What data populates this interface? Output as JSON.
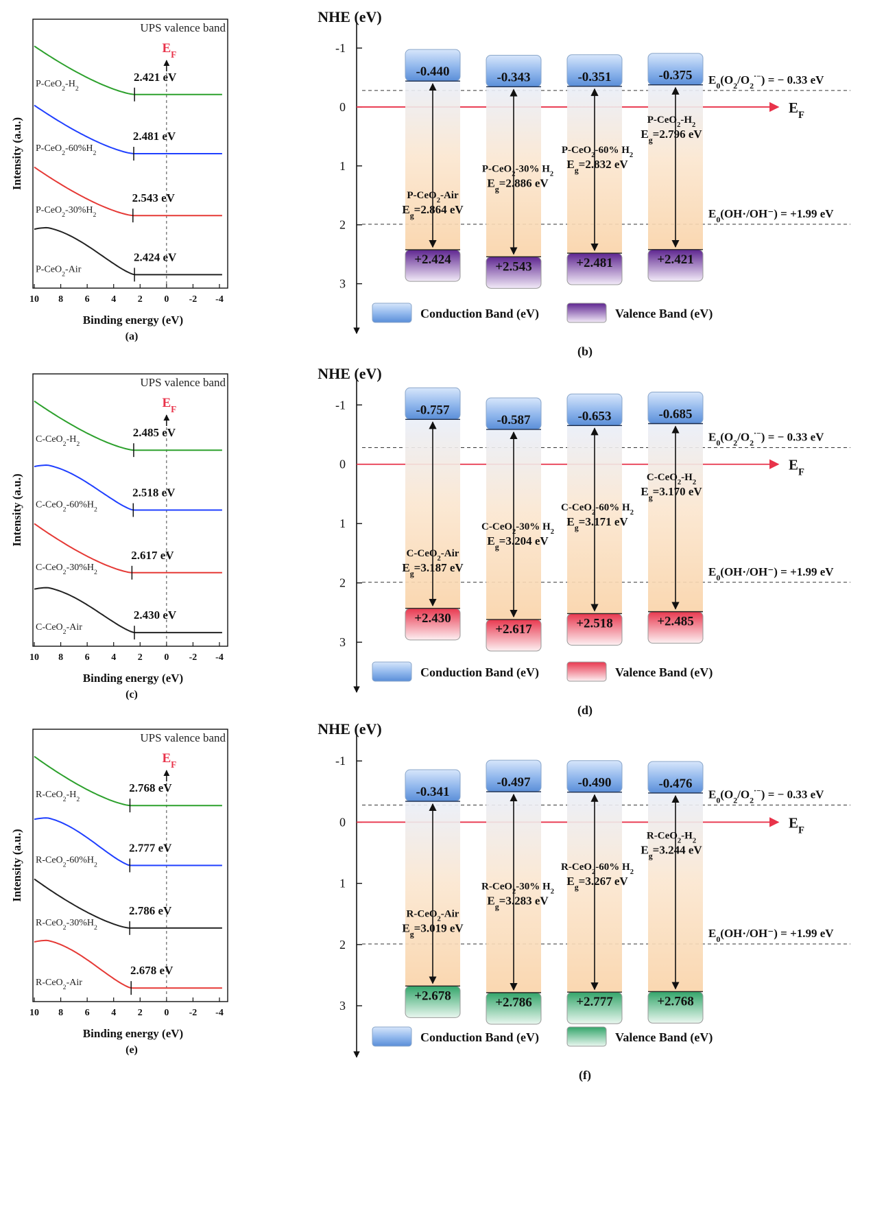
{
  "common": {
    "ups_title": "UPS valence band",
    "ef_label": "E",
    "ef_sub": "F",
    "ups_ylabel": "Intensity (a.u.)",
    "ups_xlabel": "Binding energy (eV)",
    "ups_xticks": [
      "10",
      "8",
      "6",
      "4",
      "2",
      "0",
      "-2",
      "-4"
    ],
    "nhe_label": "NHE (eV)",
    "nhe_yticks": [
      "-1",
      "0",
      "1",
      "2",
      "3"
    ],
    "o2_pre": "E",
    "o2_sub": "0",
    "o2_main": "(O",
    "o2_sub2": "2",
    "o2_slash": "/O",
    "o2_sub3": "2",
    "o2_sup": "·−",
    "o2_post": ") = − 0.33 eV",
    "oh_pre": "E",
    "oh_sub": "0",
    "oh_post": "(OH·/OH⁻) = +1.99 eV",
    "legend_cb": "Conduction Band (eV)",
    "legend_vb": "Valence Band (eV)",
    "eg_prefix": "E",
    "eg_sub": "g",
    "colors": {
      "green": "#2ca02c",
      "blue": "#1f3fff",
      "red": "#e53935",
      "black": "#222222",
      "ef_red": "#e8334a",
      "cb_top": "#c9defa",
      "cb_bottom": "#5c93de",
      "vb_purple_top": "#6a2a9a",
      "vb_red_top": "#e8384f",
      "vb_green_top": "#3aa86b"
    }
  },
  "chart_data": [
    {
      "type": "line",
      "panel_label": "(a)",
      "title": "UPS valence band",
      "xlabel": "Binding energy (eV)",
      "ylabel": "Intensity (a.u.)",
      "xlim": [
        10,
        -4
      ],
      "series": [
        {
          "name": "P-CeO2-H2",
          "sample": "P-CeO",
          "suffix": "-H",
          "suffix_sub": "2",
          "onset": 2.421,
          "onset_label": "2.421 eV",
          "color": "#2ca02c"
        },
        {
          "name": "P-CeO2-60%H2",
          "sample": "P-CeO",
          "suffix": "-60%H",
          "suffix_sub": "2",
          "onset": 2.481,
          "onset_label": "2.481 eV",
          "color": "#1f3fff"
        },
        {
          "name": "P-CeO2-30%H2",
          "sample": "P-CeO",
          "suffix": "-30%H",
          "suffix_sub": "2",
          "onset": 2.543,
          "onset_label": "2.543 eV",
          "color": "#e53935"
        },
        {
          "name": "P-CeO2-Air",
          "sample": "P-CeO",
          "suffix": "-Air",
          "suffix_sub": "",
          "onset": 2.424,
          "onset_label": "2.424 eV",
          "color": "#222222"
        }
      ]
    },
    {
      "type": "bar",
      "panel_label": "(b)",
      "ylabel": "NHE (eV)",
      "ylim": [
        -1.35,
        3.75
      ],
      "vb_style": "purple",
      "categories": [
        "P-CeO2-Air",
        "P-CeO2-30% H2",
        "P-CeO2-60% H2",
        "P-CeO2-H2"
      ],
      "bands": [
        {
          "sample": "P-CeO",
          "suffix": "-Air",
          "suffix_sub": "",
          "cb": -0.44,
          "cb_label": "-0.440",
          "vb": 2.424,
          "vb_label": "+2.424",
          "eg_label": "=2.864 eV"
        },
        {
          "sample": "P-CeO",
          "suffix": "-30% H",
          "suffix_sub": "2",
          "cb": -0.343,
          "cb_label": "-0.343",
          "vb": 2.543,
          "vb_label": "+2.543",
          "eg_label": "=2.886 eV"
        },
        {
          "sample": "P-CeO",
          "suffix": "-60% H",
          "suffix_sub": "2",
          "cb": -0.351,
          "cb_label": "-0.351",
          "vb": 2.481,
          "vb_label": "+2.481",
          "eg_label": "=2.832 eV"
        },
        {
          "sample": "P-CeO",
          "suffix": "-H",
          "suffix_sub": "2",
          "cb": -0.375,
          "cb_label": "-0.375",
          "vb": 2.421,
          "vb_label": "+2.421",
          "eg_label": "=2.796 eV"
        }
      ]
    },
    {
      "type": "line",
      "panel_label": "(c)",
      "title": "UPS valence band",
      "xlabel": "Binding energy (eV)",
      "ylabel": "Intensity (a.u.)",
      "xlim": [
        10,
        -4
      ],
      "series": [
        {
          "name": "C-CeO2-H2",
          "sample": "C-CeO",
          "suffix": "-H",
          "suffix_sub": "2",
          "onset": 2.485,
          "onset_label": "2.485 eV",
          "color": "#2ca02c"
        },
        {
          "name": "C-CeO2-60%H2",
          "sample": "C-CeO",
          "suffix": "-60%H",
          "suffix_sub": "2",
          "onset": 2.518,
          "onset_label": "2.518 eV",
          "color": "#1f3fff"
        },
        {
          "name": "C-CeO2-30%H2",
          "sample": "C-CeO",
          "suffix": "-30%H",
          "suffix_sub": "2",
          "onset": 2.617,
          "onset_label": "2.617 eV",
          "color": "#e53935"
        },
        {
          "name": "C-CeO2-Air",
          "sample": "C-CeO",
          "suffix": "-Air",
          "suffix_sub": "",
          "onset": 2.43,
          "onset_label": "2.430 eV",
          "color": "#222222"
        }
      ]
    },
    {
      "type": "bar",
      "panel_label": "(d)",
      "ylabel": "NHE (eV)",
      "ylim": [
        -1.35,
        3.75
      ],
      "vb_style": "red",
      "categories": [
        "C-CeO2-Air",
        "C-CeO2-30% H2",
        "C-CeO2-60% H2",
        "C-CeO2-H2"
      ],
      "bands": [
        {
          "sample": "C-CeO",
          "suffix": "-Air",
          "suffix_sub": "",
          "cb": -0.757,
          "cb_label": "-0.757",
          "vb": 2.43,
          "vb_label": "+2.430",
          "eg_label": "=3.187 eV"
        },
        {
          "sample": "C-CeO",
          "suffix": "-30% H",
          "suffix_sub": "2",
          "cb": -0.587,
          "cb_label": "-0.587",
          "vb": 2.617,
          "vb_label": "+2.617",
          "eg_label": "=3.204 eV"
        },
        {
          "sample": "C-CeO",
          "suffix": "-60% H",
          "suffix_sub": "2",
          "cb": -0.653,
          "cb_label": "-0.653",
          "vb": 2.518,
          "vb_label": "+2.518",
          "eg_label": "=3.171 eV"
        },
        {
          "sample": "C-CeO",
          "suffix": "-H",
          "suffix_sub": "2",
          "cb": -0.685,
          "cb_label": "-0.685",
          "vb": 2.485,
          "vb_label": "+2.485",
          "eg_label": "=3.170 eV"
        }
      ]
    },
    {
      "type": "line",
      "panel_label": "(e)",
      "title": "UPS valence band",
      "xlabel": "Binding energy (eV)",
      "ylabel": "Intensity (a.u.)",
      "xlim": [
        10,
        -4
      ],
      "series": [
        {
          "name": "R-CeO2-H2",
          "sample": "R-CeO",
          "suffix": "-H",
          "suffix_sub": "2",
          "onset": 2.768,
          "onset_label": "2.768 eV",
          "color": "#2ca02c"
        },
        {
          "name": "R-CeO2-60%H2",
          "sample": "R-CeO",
          "suffix": "-60%H",
          "suffix_sub": "2",
          "onset": 2.777,
          "onset_label": "2.777 eV",
          "color": "#1f3fff"
        },
        {
          "name": "R-CeO2-30%H2",
          "sample": "R-CeO",
          "suffix": "-30%H",
          "suffix_sub": "2",
          "onset": 2.786,
          "onset_label": "2.786 eV",
          "color": "#222222"
        },
        {
          "name": "R-CeO2-Air",
          "sample": "R-CeO",
          "suffix": "-Air",
          "suffix_sub": "",
          "onset": 2.678,
          "onset_label": "2.678 eV",
          "color": "#e53935"
        }
      ]
    },
    {
      "type": "bar",
      "panel_label": "(f)",
      "ylabel": "NHE (eV)",
      "ylim": [
        -1.35,
        3.75
      ],
      "vb_style": "green",
      "categories": [
        "R-CeO2-Air",
        "R-CeO2-30% H2",
        "R-CeO2-60% H2",
        "R-CeO2-H2"
      ],
      "bands": [
        {
          "sample": "R-CeO",
          "suffix": "-Air",
          "suffix_sub": "",
          "cb": -0.341,
          "cb_label": "-0.341",
          "vb": 2.678,
          "vb_label": "+2.678",
          "eg_label": "=3.019 eV"
        },
        {
          "sample": "R-CeO",
          "suffix": "-30% H",
          "suffix_sub": "2",
          "cb": -0.497,
          "cb_label": "-0.497",
          "vb": 2.786,
          "vb_label": "+2.786",
          "eg_label": "=3.283 eV"
        },
        {
          "sample": "R-CeO",
          "suffix": "-60% H",
          "suffix_sub": "2",
          "cb": -0.49,
          "cb_label": "-0.490",
          "vb": 2.777,
          "vb_label": "+2.777",
          "eg_label": "=3.267 eV"
        },
        {
          "sample": "R-CeO",
          "suffix": "-H",
          "suffix_sub": "2",
          "cb": -0.476,
          "cb_label": "-0.476",
          "vb": 2.768,
          "vb_label": "+2.768",
          "eg_label": "=3.244 eV"
        }
      ]
    }
  ]
}
